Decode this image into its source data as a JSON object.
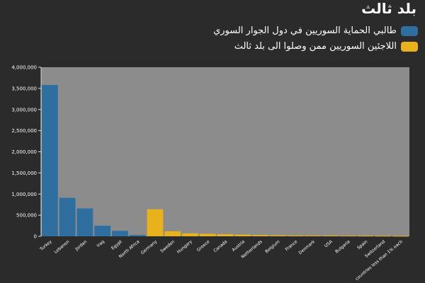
{
  "chart_data": {
    "type": "bar",
    "title": "بلد ثالث",
    "categories": [
      "Turkey",
      "Lebanon",
      "Jordan",
      "Iraq",
      "Egypt",
      "North Africa",
      "Germany",
      "Sweden",
      "Hungary",
      "Greece",
      "Canada",
      "Austria",
      "Netherlands",
      "Belgium",
      "France",
      "Denmark",
      "USA",
      "Bulgaria",
      "Spain",
      "Switzerland",
      "countries less than 1% each"
    ],
    "values": [
      3580000,
      910000,
      660000,
      250000,
      130000,
      30000,
      640000,
      120000,
      70000,
      60000,
      50000,
      40000,
      30000,
      25000,
      20000,
      18000,
      16000,
      15000,
      14000,
      12000,
      10000
    ],
    "bar_groups": [
      "neighbor",
      "neighbor",
      "neighbor",
      "neighbor",
      "neighbor",
      "neighbor",
      "third",
      "third",
      "third",
      "third",
      "third",
      "third",
      "third",
      "third",
      "third",
      "third",
      "third",
      "third",
      "third",
      "third",
      "third"
    ],
    "legend": [
      {
        "key": "neighbor",
        "label": "طالبي الحماية السوريين في دول الجوار السوري",
        "color": "#2e6f9f"
      },
      {
        "key": "third",
        "label": "اللاجئين السوريين ممن وصلوا الى بلد ثالث",
        "color": "#e8b21c"
      }
    ],
    "ylim": [
      0,
      4000000
    ],
    "yticks": [
      0,
      500000,
      1000000,
      1500000,
      2000000,
      2500000,
      3000000,
      3500000,
      4000000
    ],
    "ytick_labels": [
      "0",
      "500,000",
      "1,000,000",
      "1,500,000",
      "2,000,000",
      "2,500,000",
      "3,000,000",
      "3,500,000",
      "4,000,000"
    ],
    "plot_background": "#8c8c8c",
    "legend_position": "top-right"
  }
}
